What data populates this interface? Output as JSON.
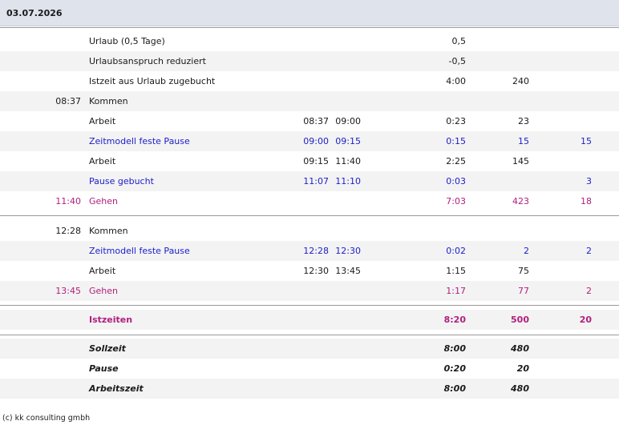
{
  "header": {
    "date": "03.07.2026"
  },
  "rows": [
    {
      "time": "",
      "label": "Urlaub (0,5 Tage)",
      "from": "",
      "to": "",
      "dur": "0,5",
      "min": "",
      "pause": ""
    },
    {
      "time": "",
      "label": "Urlaubsanspruch reduziert",
      "from": "",
      "to": "",
      "dur": "-0,5",
      "min": "",
      "pause": ""
    },
    {
      "time": "",
      "label": "Istzeit aus Urlaub zugebucht",
      "from": "",
      "to": "",
      "dur": "4:00",
      "min": "240",
      "pause": ""
    },
    {
      "time": "08:37",
      "label": "Kommen",
      "from": "",
      "to": "",
      "dur": "",
      "min": "",
      "pause": ""
    },
    {
      "time": "",
      "label": "Arbeit",
      "from": "08:37",
      "to": "09:00",
      "dur": "0:23",
      "min": "23",
      "pause": ""
    },
    {
      "time": "",
      "label": "Zeitmodell feste Pause",
      "from": "09:00",
      "to": "09:15",
      "dur": "0:15",
      "min": "15",
      "pause": "15"
    },
    {
      "time": "",
      "label": "Arbeit",
      "from": "09:15",
      "to": "11:40",
      "dur": "2:25",
      "min": "145",
      "pause": ""
    },
    {
      "time": "",
      "label": "Pause gebucht",
      "from": "11:07",
      "to": "11:10",
      "dur": "0:03",
      "min": "",
      "pause": "3"
    },
    {
      "time": "11:40",
      "label": "Gehen",
      "from": "",
      "to": "",
      "dur": "7:03",
      "min": "423",
      "pause": "18"
    },
    {
      "time": "12:28",
      "label": "Kommen",
      "from": "",
      "to": "",
      "dur": "",
      "min": "",
      "pause": ""
    },
    {
      "time": "",
      "label": "Zeitmodell feste Pause",
      "from": "12:28",
      "to": "12:30",
      "dur": "0:02",
      "min": "2",
      "pause": "2"
    },
    {
      "time": "",
      "label": "Arbeit",
      "from": "12:30",
      "to": "13:45",
      "dur": "1:15",
      "min": "75",
      "pause": ""
    },
    {
      "time": "13:45",
      "label": "Gehen",
      "from": "",
      "to": "",
      "dur": "1:17",
      "min": "77",
      "pause": "2"
    },
    {
      "time": "",
      "label": "Istzeiten",
      "from": "",
      "to": "",
      "dur": "8:20",
      "min": "500",
      "pause": "20"
    },
    {
      "time": "",
      "label": "Sollzeit",
      "from": "",
      "to": "",
      "dur": "8:00",
      "min": "480",
      "pause": ""
    },
    {
      "time": "",
      "label": "Pause",
      "from": "",
      "to": "",
      "dur": "0:20",
      "min": "20",
      "pause": ""
    },
    {
      "time": "",
      "label": "Arbeitszeit",
      "from": "",
      "to": "",
      "dur": "8:00",
      "min": "480",
      "pause": ""
    }
  ],
  "footer": {
    "copyright": "(c) kk consulting gmbh"
  },
  "colors": {
    "header_bg": "#dee3ec",
    "blue_text": "#1c1ccc",
    "magenta_text": "#b0207f",
    "alt_row_bg": "#f3f3f3"
  }
}
